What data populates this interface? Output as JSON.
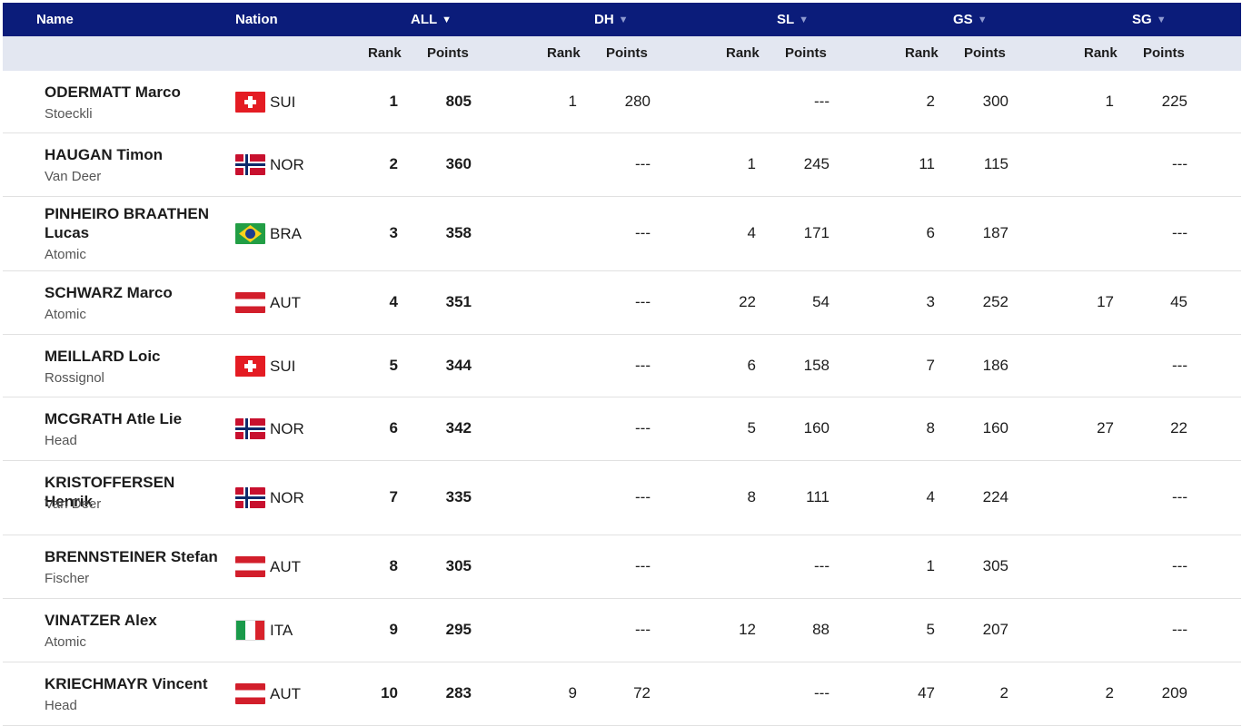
{
  "header": {
    "name": "Name",
    "nation": "Nation",
    "all": "ALL",
    "dh": "DH",
    "sl": "SL",
    "gs": "GS",
    "sg": "SG",
    "arrow": "▼"
  },
  "subheader": {
    "rank": "Rank",
    "points": "Points"
  },
  "colors": {
    "header_bg": "#0b1c7a",
    "subheader_bg": "#e3e7f1"
  },
  "rows": [
    {
      "name": "ODERMATT Marco",
      "brand": "Stoeckli",
      "flag": "sui",
      "nation": "SUI",
      "all_rank": "1",
      "all_points": "805",
      "dh_rank": "1",
      "dh_points": "280",
      "sl_rank": "",
      "sl_points": "---",
      "gs_rank": "2",
      "gs_points": "300",
      "sg_rank": "1",
      "sg_points": "225"
    },
    {
      "name": "HAUGAN Timon",
      "brand": "Van Deer",
      "flag": "nor",
      "nation": "NOR",
      "all_rank": "2",
      "all_points": "360",
      "dh_rank": "",
      "dh_points": "---",
      "sl_rank": "1",
      "sl_points": "245",
      "gs_rank": "11",
      "gs_points": "115",
      "sg_rank": "",
      "sg_points": "---"
    },
    {
      "name": "PINHEIRO BRAATHEN Lucas",
      "brand": "Atomic",
      "flag": "bra",
      "nation": "BRA",
      "all_rank": "3",
      "all_points": "358",
      "dh_rank": "",
      "dh_points": "---",
      "sl_rank": "4",
      "sl_points": "171",
      "gs_rank": "6",
      "gs_points": "187",
      "sg_rank": "",
      "sg_points": "---"
    },
    {
      "name": "SCHWARZ Marco",
      "brand": "Atomic",
      "flag": "aut",
      "nation": "AUT",
      "all_rank": "4",
      "all_points": "351",
      "dh_rank": "",
      "dh_points": "---",
      "sl_rank": "22",
      "sl_points": "54",
      "gs_rank": "3",
      "gs_points": "252",
      "sg_rank": "17",
      "sg_points": "45"
    },
    {
      "name": "MEILLARD Loic",
      "brand": "Rossignol",
      "flag": "sui",
      "nation": "SUI",
      "all_rank": "5",
      "all_points": "344",
      "dh_rank": "",
      "dh_points": "---",
      "sl_rank": "6",
      "sl_points": "158",
      "gs_rank": "7",
      "gs_points": "186",
      "sg_rank": "",
      "sg_points": "---"
    },
    {
      "name": "MCGRATH Atle Lie",
      "brand": "Head",
      "flag": "nor",
      "nation": "NOR",
      "all_rank": "6",
      "all_points": "342",
      "dh_rank": "",
      "dh_points": "---",
      "sl_rank": "5",
      "sl_points": "160",
      "gs_rank": "8",
      "gs_points": "160",
      "sg_rank": "27",
      "sg_points": "22"
    },
    {
      "name": "KRISTOFFERSEN Henrik",
      "brand": "Van Deer",
      "flag": "nor",
      "nation": "NOR",
      "all_rank": "7",
      "all_points": "335",
      "dh_rank": "",
      "dh_points": "---",
      "sl_rank": "8",
      "sl_points": "111",
      "gs_rank": "4",
      "gs_points": "224",
      "sg_rank": "",
      "sg_points": "---"
    },
    {
      "name": "BRENNSTEINER Stefan",
      "brand": "Fischer",
      "flag": "aut",
      "nation": "AUT",
      "all_rank": "8",
      "all_points": "305",
      "dh_rank": "",
      "dh_points": "---",
      "sl_rank": "",
      "sl_points": "---",
      "gs_rank": "1",
      "gs_points": "305",
      "sg_rank": "",
      "sg_points": "---"
    },
    {
      "name": "VINATZER Alex",
      "brand": "Atomic",
      "flag": "ita",
      "nation": "ITA",
      "all_rank": "9",
      "all_points": "295",
      "dh_rank": "",
      "dh_points": "---",
      "sl_rank": "12",
      "sl_points": "88",
      "gs_rank": "5",
      "gs_points": "207",
      "sg_rank": "",
      "sg_points": "---"
    },
    {
      "name": "KRIECHMAYR Vincent",
      "brand": "Head",
      "flag": "aut",
      "nation": "AUT",
      "all_rank": "10",
      "all_points": "283",
      "dh_rank": "9",
      "dh_points": "72",
      "sl_rank": "",
      "sl_points": "---",
      "gs_rank": "47",
      "gs_points": "2",
      "sg_rank": "2",
      "sg_points": "209"
    }
  ]
}
